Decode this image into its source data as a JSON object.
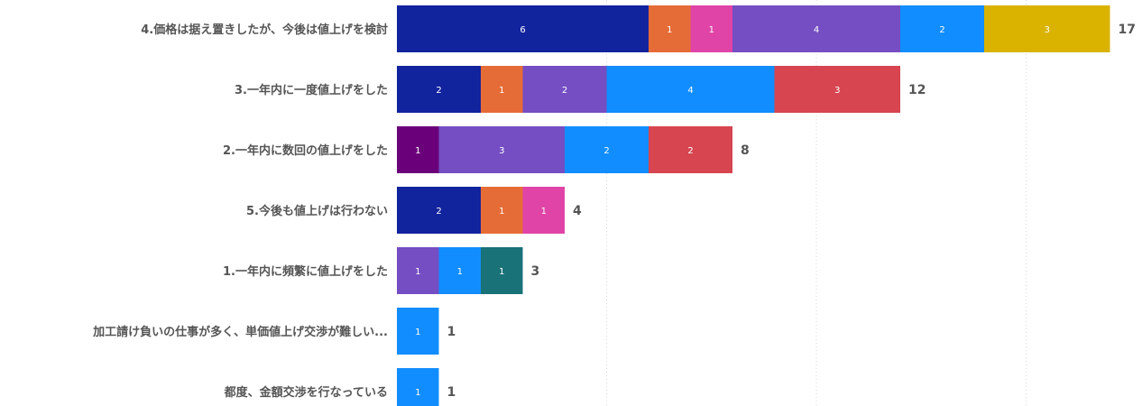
{
  "chart_data": {
    "type": "bar",
    "orientation": "horizontal",
    "stacked": true,
    "xlim": [
      0,
      17
    ],
    "grid": true,
    "category_order": [
      "4.価格は据え置きしたが、今後は値上げを検討",
      "3.一年内に一度値上げをした",
      "2.一年内に数回の値上げをした",
      "5.今後も値上げは行わない",
      "1.一年内に頻繁に値上げをした",
      "加工請け負いの仕事が多く、単価値上げ交渉が難しい...",
      "都度、金額交渉を行なっている"
    ],
    "bars": [
      {
        "category": "4.価格は据え置きしたが、今後は値上げを検討",
        "total": "17",
        "segments": [
          {
            "value": 6,
            "label": "6",
            "color": "#12239e"
          },
          {
            "value": 1,
            "label": "1",
            "color": "#e66c37"
          },
          {
            "value": 1,
            "label": "1",
            "color": "#e044a7"
          },
          {
            "value": 4,
            "label": "4",
            "color": "#744ec2"
          },
          {
            "value": 2,
            "label": "2",
            "color": "#118dff"
          },
          {
            "value": 3,
            "label": "3",
            "color": "#d9b300"
          }
        ]
      },
      {
        "category": "3.一年内に一度値上げをした",
        "total": "12",
        "segments": [
          {
            "value": 2,
            "label": "2",
            "color": "#12239e"
          },
          {
            "value": 1,
            "label": "1",
            "color": "#e66c37"
          },
          {
            "value": 2,
            "label": "2",
            "color": "#744ec2"
          },
          {
            "value": 4,
            "label": "4",
            "color": "#118dff"
          },
          {
            "value": 3,
            "label": "3",
            "color": "#d64550"
          }
        ]
      },
      {
        "category": "2.一年内に数回の値上げをした",
        "total": "8",
        "segments": [
          {
            "value": 1,
            "label": "1",
            "color": "#6b007b"
          },
          {
            "value": 3,
            "label": "3",
            "color": "#744ec2"
          },
          {
            "value": 2,
            "label": "2",
            "color": "#118dff"
          },
          {
            "value": 2,
            "label": "2",
            "color": "#d64550"
          }
        ]
      },
      {
        "category": "5.今後も値上げは行わない",
        "total": "4",
        "segments": [
          {
            "value": 2,
            "label": "2",
            "color": "#12239e"
          },
          {
            "value": 1,
            "label": "1",
            "color": "#e66c37"
          },
          {
            "value": 1,
            "label": "1",
            "color": "#e044a7"
          }
        ]
      },
      {
        "category": "1.一年内に頻繁に値上げをした",
        "total": "3",
        "segments": [
          {
            "value": 1,
            "label": "1",
            "color": "#744ec2"
          },
          {
            "value": 1,
            "label": "1",
            "color": "#118dff"
          },
          {
            "value": 1,
            "label": "1",
            "color": "#197278"
          }
        ]
      },
      {
        "category": "加工請け負いの仕事が多く、単価値上げ交渉が難しい...",
        "total": "1",
        "segments": [
          {
            "value": 1,
            "label": "1",
            "color": "#118dff"
          }
        ]
      },
      {
        "category": "都度、金額交渉を行なっている",
        "total": "1",
        "segments": [
          {
            "value": 1,
            "label": "1",
            "color": "#118dff"
          }
        ]
      }
    ]
  }
}
